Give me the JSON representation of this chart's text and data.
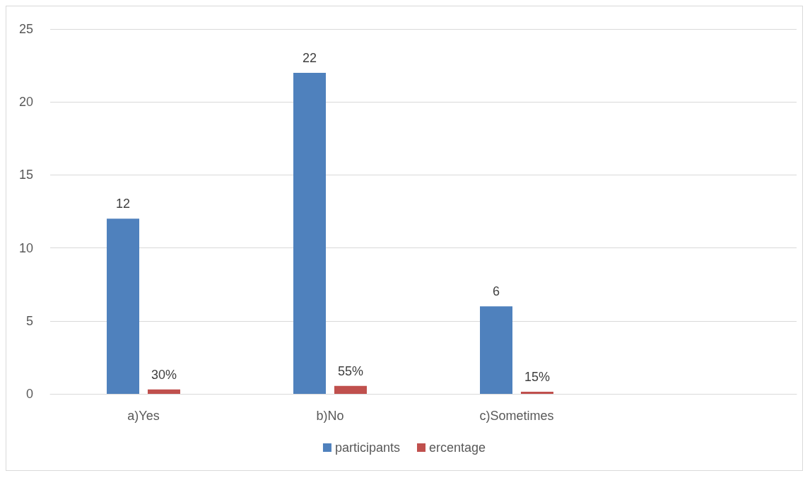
{
  "chart_data": {
    "type": "bar",
    "categories": [
      "a)Yes",
      "b)No",
      "c)Sometimes",
      null
    ],
    "series": [
      {
        "name": "participants",
        "color": "#4f81bd",
        "values": [
          12,
          22,
          6,
          null
        ],
        "value_labels": [
          "12",
          "22",
          "6",
          null
        ]
      },
      {
        "name": "ercentage",
        "color": "#c0504d",
        "values": [
          0.3,
          0.55,
          0.15,
          null
        ],
        "value_labels": [
          "30%",
          "55%",
          "15%",
          null
        ]
      }
    ],
    "ylim": [
      0,
      25
    ],
    "yticks": [
      0,
      5,
      10,
      15,
      20,
      25
    ],
    "grid": "y",
    "legend": "bottom"
  }
}
